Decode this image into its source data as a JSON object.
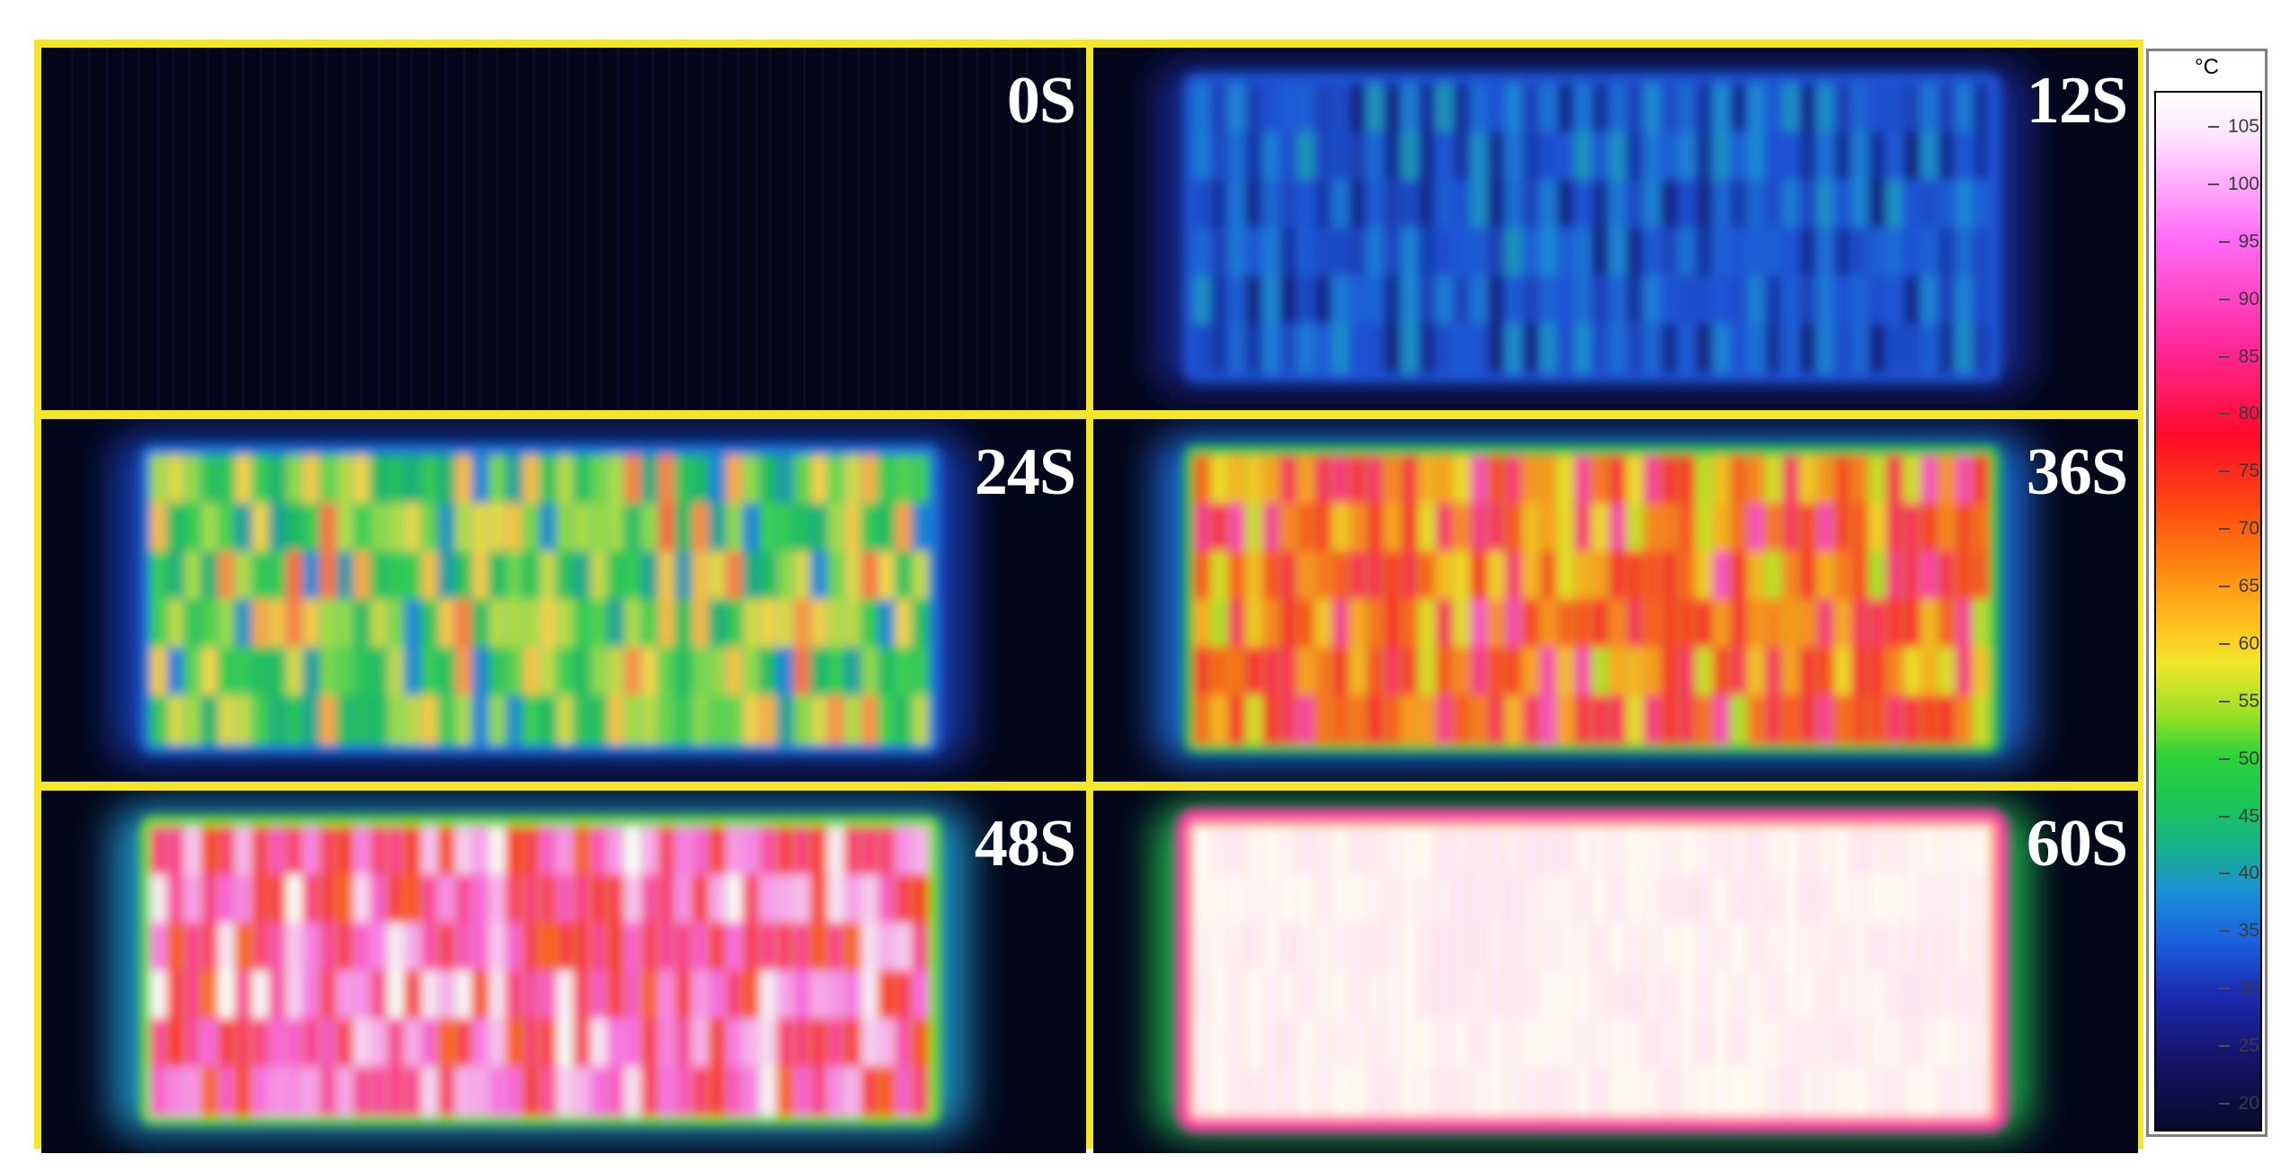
{
  "panels": [
    {
      "label": "0S",
      "level": 0.0
    },
    {
      "label": "12S",
      "level": 0.2
    },
    {
      "label": "24S",
      "level": 0.45
    },
    {
      "label": "36S",
      "level": 0.65
    },
    {
      "label": "48S",
      "level": 0.82
    },
    {
      "label": "60S",
      "level": 1.0
    }
  ],
  "legend": {
    "unit": "°C",
    "ticks": [
      "105",
      "100",
      "95",
      "90",
      "85",
      "80",
      "75",
      "70",
      "65",
      "60",
      "55",
      "50",
      "45",
      "40",
      "35",
      "30",
      "25",
      "20"
    ]
  },
  "colors": {
    "frame": "#f3e62c",
    "background": "#04061a",
    "label": "#ffffff"
  }
}
